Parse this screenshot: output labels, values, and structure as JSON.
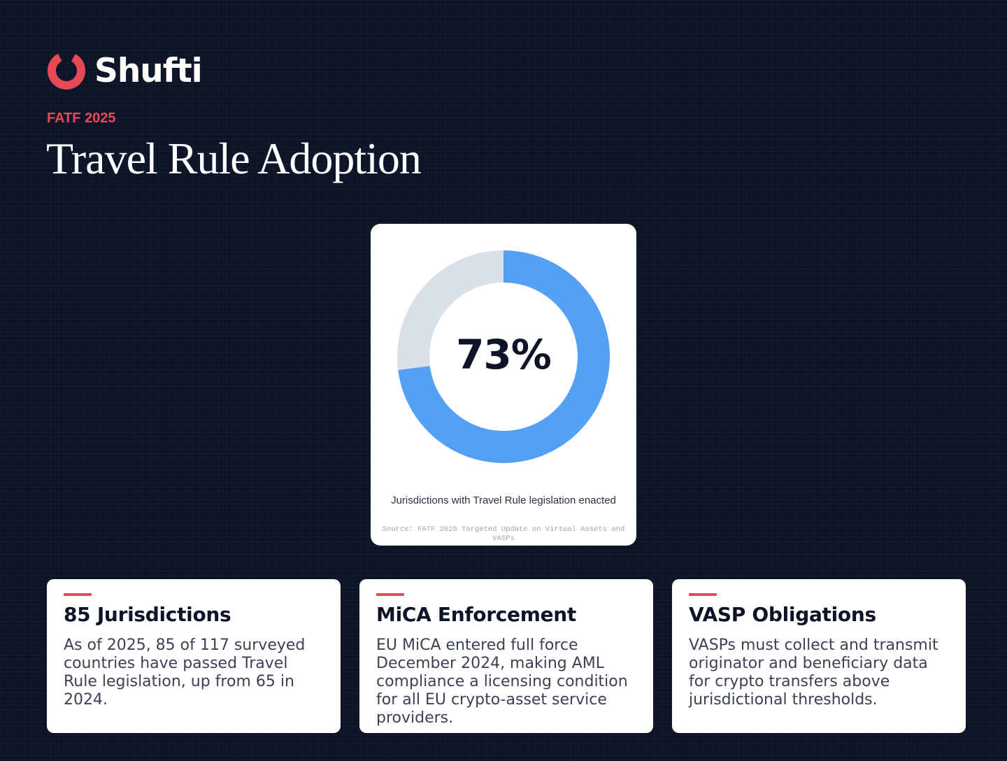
{
  "brand": {
    "name": "Shufti",
    "logo_icon": "shufti-logo-icon",
    "accent_color": "#e84a55"
  },
  "header": {
    "eyebrow": "FATF 2025",
    "title": "Travel Rule Adoption"
  },
  "chart": {
    "center_label": "73%",
    "caption": "Jurisdictions with Travel Rule legislation enacted",
    "source": "Source: FATF 2025 Targeted Update on Virtual Assets and VASPs"
  },
  "chart_data": {
    "type": "pie",
    "variant": "donut",
    "slices": [
      {
        "value": 73,
        "color": "#54a0f5"
      },
      {
        "value": 27,
        "color": "#d9e0e9"
      }
    ]
  },
  "cards": [
    {
      "title": "85 Jurisdictions",
      "body": "As of 2025, 85 of 117 surveyed countries have passed Travel Rule legislation, up from 65 in 2024."
    },
    {
      "title": "MiCA Enforcement",
      "body": "EU MiCA entered full force December 2024, making AML compliance a licensing condition for all EU crypto-asset service providers."
    },
    {
      "title": "VASP Obligations",
      "body": "VASPs must collect and transmit originator and beneficiary data for crypto transfers above jurisdictional thresholds."
    }
  ]
}
